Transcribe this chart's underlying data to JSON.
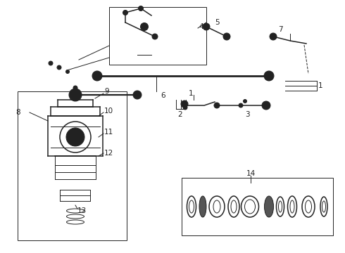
{
  "bg_color": "#ffffff",
  "line_color": "#222222",
  "label_fontsize": 7.5,
  "fig_width": 4.9,
  "fig_height": 3.6,
  "dpi": 100
}
